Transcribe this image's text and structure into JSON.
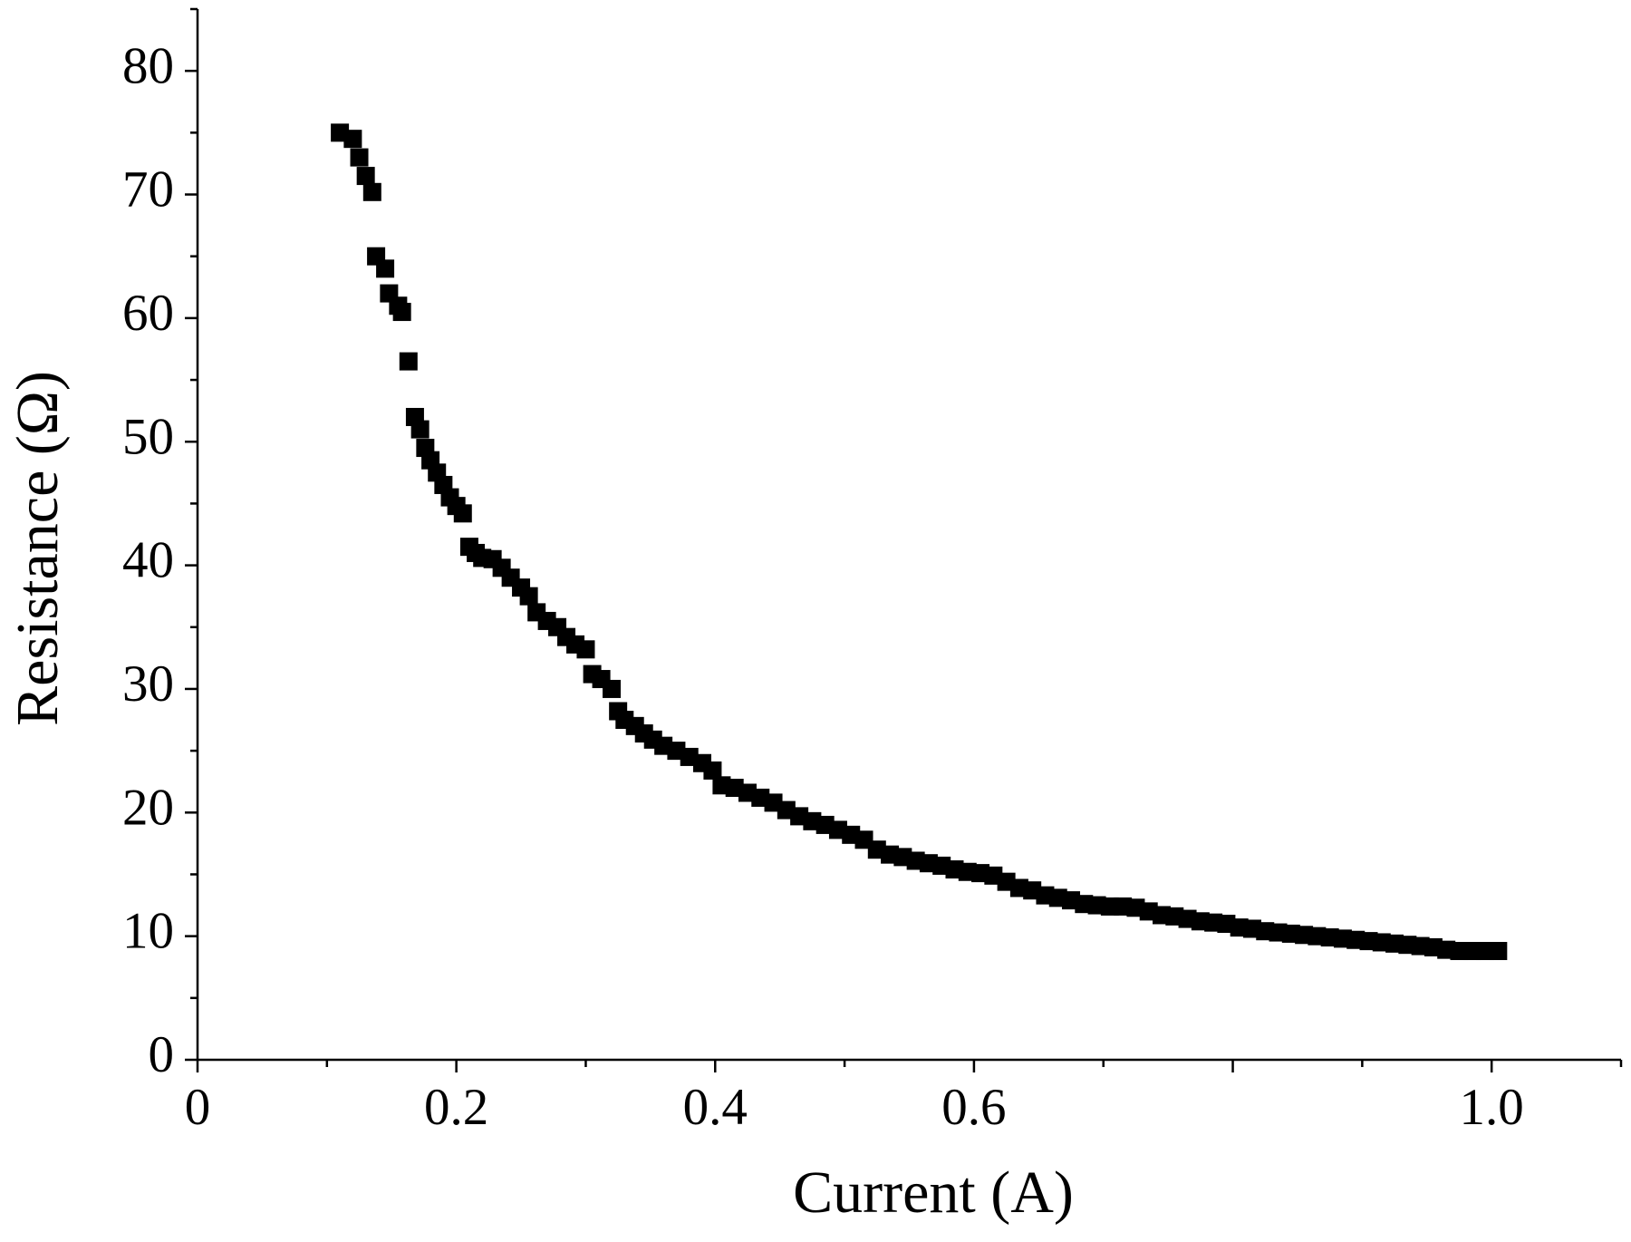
{
  "chart_data": {
    "type": "scatter",
    "xlabel": "Current (A)",
    "ylabel": "Resistance (Ω)",
    "series": [
      {
        "color": "#000000",
        "marker": "square",
        "x": [
          0.11,
          0.12,
          0.125,
          0.13,
          0.135,
          0.138,
          0.145,
          0.148,
          0.155,
          0.158,
          0.163,
          0.168,
          0.172,
          0.176,
          0.18,
          0.185,
          0.19,
          0.195,
          0.2,
          0.205,
          0.21,
          0.215,
          0.22,
          0.228,
          0.235,
          0.242,
          0.25,
          0.256,
          0.262,
          0.27,
          0.278,
          0.285,
          0.292,
          0.3,
          0.305,
          0.312,
          0.32,
          0.325,
          0.33,
          0.338,
          0.345,
          0.352,
          0.36,
          0.37,
          0.38,
          0.39,
          0.398,
          0.405,
          0.415,
          0.425,
          0.435,
          0.445,
          0.455,
          0.465,
          0.475,
          0.485,
          0.495,
          0.505,
          0.515,
          0.525,
          0.535,
          0.545,
          0.555,
          0.565,
          0.575,
          0.585,
          0.595,
          0.605,
          0.615,
          0.625,
          0.635,
          0.645,
          0.655,
          0.665,
          0.675,
          0.685,
          0.695,
          0.705,
          0.715,
          0.725,
          0.735,
          0.745,
          0.755,
          0.765,
          0.775,
          0.785,
          0.795,
          0.805,
          0.815,
          0.825,
          0.835,
          0.845,
          0.855,
          0.865,
          0.875,
          0.885,
          0.895,
          0.905,
          0.915,
          0.925,
          0.935,
          0.945,
          0.955,
          0.965,
          0.975,
          0.985,
          0.995,
          1.005
        ],
        "values": [
          75,
          74.5,
          73,
          71.5,
          70.2,
          65,
          64,
          62,
          61,
          60.5,
          56.5,
          52,
          51,
          49.5,
          48.5,
          47.5,
          46.5,
          45.5,
          44.8,
          44.2,
          41.5,
          41,
          40.6,
          40.5,
          39.8,
          39,
          38.2,
          37.5,
          36.2,
          35.5,
          35,
          34.2,
          33.6,
          33.2,
          31.2,
          30.8,
          30,
          28.2,
          27.5,
          27,
          26.4,
          25.9,
          25.4,
          25,
          24.5,
          24,
          23.4,
          22.2,
          22,
          21.6,
          21.2,
          20.8,
          20.2,
          19.7,
          19.3,
          19,
          18.6,
          18.2,
          17.8,
          17,
          16.6,
          16.4,
          16.1,
          15.9,
          15.7,
          15.4,
          15.2,
          15.1,
          14.9,
          14.4,
          13.9,
          13.7,
          13.3,
          13.1,
          12.9,
          12.6,
          12.5,
          12.4,
          12.4,
          12.3,
          12,
          11.7,
          11.6,
          11.4,
          11.2,
          11.1,
          11,
          10.7,
          10.6,
          10.4,
          10.3,
          10.2,
          10.1,
          10,
          9.9,
          9.8,
          9.7,
          9.6,
          9.5,
          9.4,
          9.3,
          9.2,
          9.1,
          8.9,
          8.8,
          8.8,
          8.8,
          8.8
        ]
      }
    ],
    "xlim": [
      0,
      1.1
    ],
    "ylim": [
      0,
      85
    ],
    "xticks": [
      0,
      0.2,
      0.4,
      0.6,
      {
        "value": 1,
        "label": "1.0"
      }
    ],
    "xticks_all": [
      0,
      0.2,
      0.4,
      0.6,
      0.8,
      1
    ],
    "xminorticks": [
      0.1,
      0.3,
      0.5,
      0.7,
      0.9,
      1.1
    ],
    "yticks": [
      0,
      10,
      20,
      30,
      40,
      50,
      60,
      70,
      80
    ],
    "yminorticks": [
      5,
      15,
      25,
      35,
      45,
      55,
      65,
      75,
      85
    ],
    "grid": false
  }
}
